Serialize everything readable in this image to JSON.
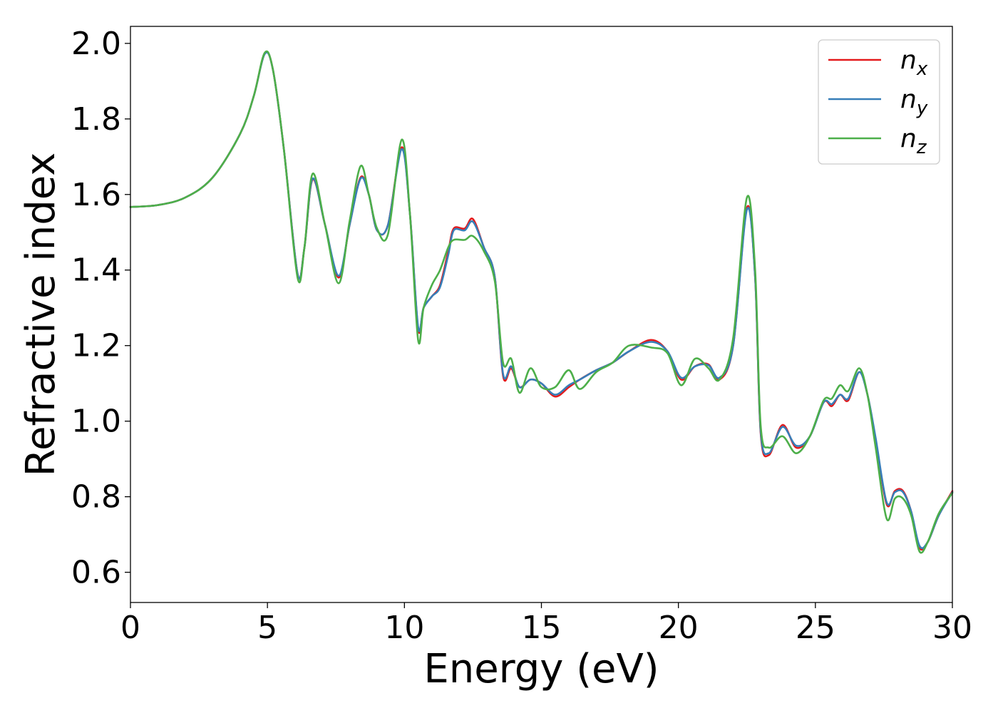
{
  "chart_data": {
    "type": "line",
    "title": "",
    "xlabel": "Energy (eV)",
    "ylabel": "Refractive index",
    "xlim": [
      0,
      30
    ],
    "ylim": [
      0.52,
      2.045
    ],
    "x_ticks": [
      0,
      5,
      10,
      15,
      20,
      25,
      30
    ],
    "x_tick_labels": [
      "0",
      "5",
      "10",
      "15",
      "20",
      "25",
      "30"
    ],
    "y_ticks": [
      0.6,
      0.8,
      1.0,
      1.2,
      1.4,
      1.6,
      1.8,
      2.0
    ],
    "y_tick_labels": [
      "0.6",
      "0.8",
      "1.0",
      "1.2",
      "1.4",
      "1.6",
      "1.8",
      "2.0"
    ],
    "grid": false,
    "legend_position": "top-right",
    "series": [
      {
        "name": "n_x",
        "legend_base": "n",
        "legend_sub": "x",
        "color": "#e41a1c",
        "points": [
          [
            0,
            1.567
          ],
          [
            1,
            1.572
          ],
          [
            2,
            1.592
          ],
          [
            3,
            1.645
          ],
          [
            4,
            1.76
          ],
          [
            4.5,
            1.86
          ],
          [
            4.9,
            1.973
          ],
          [
            5.2,
            1.93
          ],
          [
            5.6,
            1.72
          ],
          [
            6.1,
            1.39
          ],
          [
            6.35,
            1.46
          ],
          [
            6.65,
            1.64
          ],
          [
            7.1,
            1.52
          ],
          [
            7.6,
            1.38
          ],
          [
            8.0,
            1.52
          ],
          [
            8.4,
            1.645
          ],
          [
            8.7,
            1.6
          ],
          [
            9.0,
            1.505
          ],
          [
            9.4,
            1.52
          ],
          [
            9.9,
            1.725
          ],
          [
            10.2,
            1.55
          ],
          [
            10.5,
            1.245
          ],
          [
            10.7,
            1.3
          ],
          [
            11.0,
            1.33
          ],
          [
            11.3,
            1.36
          ],
          [
            11.6,
            1.45
          ],
          [
            11.8,
            1.51
          ],
          [
            12.2,
            1.51
          ],
          [
            12.5,
            1.535
          ],
          [
            12.9,
            1.46
          ],
          [
            13.3,
            1.38
          ],
          [
            13.6,
            1.12
          ],
          [
            13.9,
            1.14
          ],
          [
            14.2,
            1.09
          ],
          [
            14.6,
            1.11
          ],
          [
            15.0,
            1.1
          ],
          [
            15.5,
            1.065
          ],
          [
            16.0,
            1.09
          ],
          [
            16.4,
            1.11
          ],
          [
            17.0,
            1.135
          ],
          [
            17.6,
            1.155
          ],
          [
            18.2,
            1.185
          ],
          [
            19.0,
            1.215
          ],
          [
            19.6,
            1.185
          ],
          [
            20.1,
            1.11
          ],
          [
            20.6,
            1.145
          ],
          [
            21.1,
            1.15
          ],
          [
            21.5,
            1.11
          ],
          [
            22.0,
            1.2
          ],
          [
            22.5,
            1.565
          ],
          [
            22.8,
            1.38
          ],
          [
            23.0,
            0.97
          ],
          [
            23.3,
            0.91
          ],
          [
            23.8,
            0.99
          ],
          [
            24.3,
            0.93
          ],
          [
            24.8,
            0.96
          ],
          [
            25.3,
            1.05
          ],
          [
            25.6,
            1.04
          ],
          [
            25.9,
            1.07
          ],
          [
            26.2,
            1.055
          ],
          [
            26.6,
            1.13
          ],
          [
            26.9,
            1.07
          ],
          [
            27.2,
            0.95
          ],
          [
            27.6,
            0.78
          ],
          [
            27.9,
            0.815
          ],
          [
            28.2,
            0.815
          ],
          [
            28.5,
            0.76
          ],
          [
            28.8,
            0.665
          ],
          [
            29.1,
            0.68
          ],
          [
            29.5,
            0.75
          ],
          [
            30.0,
            0.815
          ]
        ]
      },
      {
        "name": "n_y",
        "legend_base": "n",
        "legend_sub": "y",
        "color": "#377eb8",
        "points": [
          [
            0,
            1.567
          ],
          [
            1,
            1.572
          ],
          [
            2,
            1.592
          ],
          [
            3,
            1.645
          ],
          [
            4,
            1.76
          ],
          [
            4.5,
            1.86
          ],
          [
            4.9,
            1.972
          ],
          [
            5.2,
            1.93
          ],
          [
            5.6,
            1.72
          ],
          [
            6.1,
            1.39
          ],
          [
            6.35,
            1.46
          ],
          [
            6.65,
            1.642
          ],
          [
            7.1,
            1.52
          ],
          [
            7.6,
            1.385
          ],
          [
            8.0,
            1.52
          ],
          [
            8.4,
            1.642
          ],
          [
            8.7,
            1.6
          ],
          [
            9.0,
            1.505
          ],
          [
            9.4,
            1.52
          ],
          [
            9.9,
            1.72
          ],
          [
            10.2,
            1.55
          ],
          [
            10.5,
            1.25
          ],
          [
            10.7,
            1.3
          ],
          [
            11.0,
            1.33
          ],
          [
            11.3,
            1.355
          ],
          [
            11.6,
            1.44
          ],
          [
            11.8,
            1.505
          ],
          [
            12.2,
            1.505
          ],
          [
            12.5,
            1.528
          ],
          [
            12.9,
            1.46
          ],
          [
            13.3,
            1.38
          ],
          [
            13.6,
            1.125
          ],
          [
            13.9,
            1.145
          ],
          [
            14.2,
            1.09
          ],
          [
            14.6,
            1.11
          ],
          [
            15.0,
            1.1
          ],
          [
            15.5,
            1.07
          ],
          [
            16.0,
            1.095
          ],
          [
            16.4,
            1.11
          ],
          [
            17.0,
            1.135
          ],
          [
            17.6,
            1.155
          ],
          [
            18.2,
            1.185
          ],
          [
            19.0,
            1.21
          ],
          [
            19.6,
            1.185
          ],
          [
            20.1,
            1.115
          ],
          [
            20.6,
            1.145
          ],
          [
            21.1,
            1.148
          ],
          [
            21.5,
            1.115
          ],
          [
            22.0,
            1.2
          ],
          [
            22.5,
            1.56
          ],
          [
            22.8,
            1.38
          ],
          [
            23.0,
            0.975
          ],
          [
            23.3,
            0.915
          ],
          [
            23.8,
            0.985
          ],
          [
            24.3,
            0.935
          ],
          [
            24.8,
            0.96
          ],
          [
            25.3,
            1.05
          ],
          [
            25.6,
            1.045
          ],
          [
            25.9,
            1.07
          ],
          [
            26.2,
            1.06
          ],
          [
            26.6,
            1.13
          ],
          [
            26.9,
            1.07
          ],
          [
            27.2,
            0.955
          ],
          [
            27.6,
            0.785
          ],
          [
            27.9,
            0.812
          ],
          [
            28.2,
            0.812
          ],
          [
            28.5,
            0.76
          ],
          [
            28.8,
            0.67
          ],
          [
            29.1,
            0.68
          ],
          [
            29.5,
            0.75
          ],
          [
            30.0,
            0.812
          ]
        ]
      },
      {
        "name": "n_z",
        "legend_base": "n",
        "legend_sub": "z",
        "color": "#4daf4a",
        "points": [
          [
            0,
            1.567
          ],
          [
            1,
            1.572
          ],
          [
            2,
            1.592
          ],
          [
            3,
            1.645
          ],
          [
            4,
            1.76
          ],
          [
            4.5,
            1.86
          ],
          [
            4.9,
            1.975
          ],
          [
            5.2,
            1.93
          ],
          [
            5.6,
            1.72
          ],
          [
            6.1,
            1.38
          ],
          [
            6.35,
            1.46
          ],
          [
            6.65,
            1.655
          ],
          [
            7.1,
            1.52
          ],
          [
            7.6,
            1.365
          ],
          [
            8.0,
            1.53
          ],
          [
            8.4,
            1.675
          ],
          [
            8.7,
            1.6
          ],
          [
            9.0,
            1.51
          ],
          [
            9.4,
            1.495
          ],
          [
            9.9,
            1.745
          ],
          [
            10.2,
            1.55
          ],
          [
            10.5,
            1.215
          ],
          [
            10.7,
            1.3
          ],
          [
            11.0,
            1.36
          ],
          [
            11.3,
            1.4
          ],
          [
            11.6,
            1.46
          ],
          [
            11.8,
            1.48
          ],
          [
            12.2,
            1.48
          ],
          [
            12.5,
            1.49
          ],
          [
            12.9,
            1.45
          ],
          [
            13.3,
            1.37
          ],
          [
            13.6,
            1.155
          ],
          [
            13.9,
            1.165
          ],
          [
            14.2,
            1.075
          ],
          [
            14.6,
            1.14
          ],
          [
            15.0,
            1.09
          ],
          [
            15.5,
            1.09
          ],
          [
            16.0,
            1.135
          ],
          [
            16.4,
            1.085
          ],
          [
            17.0,
            1.13
          ],
          [
            17.6,
            1.155
          ],
          [
            18.2,
            1.2
          ],
          [
            19.0,
            1.195
          ],
          [
            19.6,
            1.18
          ],
          [
            20.1,
            1.095
          ],
          [
            20.6,
            1.165
          ],
          [
            21.1,
            1.14
          ],
          [
            21.5,
            1.11
          ],
          [
            22.0,
            1.22
          ],
          [
            22.5,
            1.592
          ],
          [
            22.8,
            1.4
          ],
          [
            23.0,
            0.99
          ],
          [
            23.3,
            0.93
          ],
          [
            23.8,
            0.96
          ],
          [
            24.3,
            0.915
          ],
          [
            24.8,
            0.96
          ],
          [
            25.3,
            1.055
          ],
          [
            25.6,
            1.06
          ],
          [
            25.9,
            1.095
          ],
          [
            26.2,
            1.08
          ],
          [
            26.6,
            1.14
          ],
          [
            26.9,
            1.07
          ],
          [
            27.2,
            0.93
          ],
          [
            27.6,
            0.742
          ],
          [
            27.9,
            0.795
          ],
          [
            28.2,
            0.795
          ],
          [
            28.5,
            0.75
          ],
          [
            28.8,
            0.655
          ],
          [
            29.1,
            0.68
          ],
          [
            29.5,
            0.755
          ],
          [
            30.0,
            0.81
          ]
        ]
      }
    ]
  }
}
